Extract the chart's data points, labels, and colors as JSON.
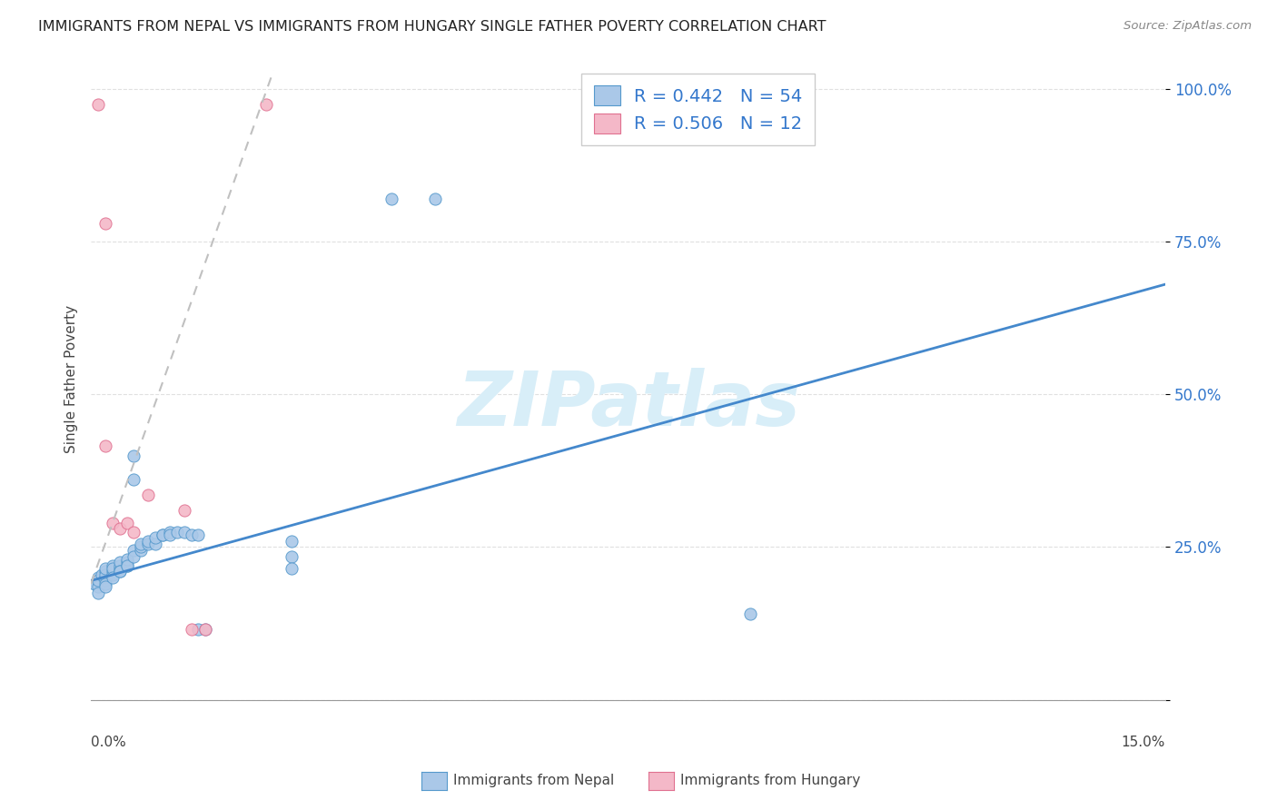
{
  "title": "IMMIGRANTS FROM NEPAL VS IMMIGRANTS FROM HUNGARY SINGLE FATHER POVERTY CORRELATION CHART",
  "source": "Source: ZipAtlas.com",
  "ylabel": "Single Father Poverty",
  "yticks": [
    0.0,
    0.25,
    0.5,
    0.75,
    1.0
  ],
  "ytick_labels": [
    "",
    "25.0%",
    "50.0%",
    "75.0%",
    "100.0%"
  ],
  "xlim": [
    0.0,
    0.15
  ],
  "ylim": [
    0.0,
    1.05
  ],
  "nepal_R": 0.442,
  "nepal_N": 54,
  "hungary_R": 0.506,
  "hungary_N": 12,
  "nepal_color": "#aac8e8",
  "nepal_edge_color": "#5599cc",
  "nepal_line_color": "#4488cc",
  "hungary_color": "#f4b8c8",
  "hungary_edge_color": "#e07090",
  "hungary_line_color": "#e06080",
  "hungary_reg_color": "#c0c0c0",
  "nepal_scatter": [
    [
      0.0005,
      0.19
    ],
    [
      0.001,
      0.2
    ],
    [
      0.001,
      0.185
    ],
    [
      0.001,
      0.175
    ],
    [
      0.001,
      0.195
    ],
    [
      0.0015,
      0.205
    ],
    [
      0.002,
      0.2
    ],
    [
      0.002,
      0.195
    ],
    [
      0.002,
      0.21
    ],
    [
      0.002,
      0.205
    ],
    [
      0.002,
      0.215
    ],
    [
      0.002,
      0.19
    ],
    [
      0.002,
      0.185
    ],
    [
      0.003,
      0.21
    ],
    [
      0.003,
      0.205
    ],
    [
      0.003,
      0.22
    ],
    [
      0.003,
      0.215
    ],
    [
      0.003,
      0.2
    ],
    [
      0.004,
      0.215
    ],
    [
      0.004,
      0.22
    ],
    [
      0.004,
      0.225
    ],
    [
      0.004,
      0.21
    ],
    [
      0.004,
      0.21
    ],
    [
      0.005,
      0.225
    ],
    [
      0.005,
      0.22
    ],
    [
      0.005,
      0.23
    ],
    [
      0.005,
      0.22
    ],
    [
      0.006,
      0.36
    ],
    [
      0.006,
      0.4
    ],
    [
      0.006,
      0.245
    ],
    [
      0.006,
      0.235
    ],
    [
      0.007,
      0.245
    ],
    [
      0.007,
      0.25
    ],
    [
      0.007,
      0.255
    ],
    [
      0.008,
      0.255
    ],
    [
      0.008,
      0.26
    ],
    [
      0.009,
      0.255
    ],
    [
      0.009,
      0.265
    ],
    [
      0.01,
      0.27
    ],
    [
      0.01,
      0.27
    ],
    [
      0.011,
      0.275
    ],
    [
      0.011,
      0.27
    ],
    [
      0.012,
      0.275
    ],
    [
      0.013,
      0.275
    ],
    [
      0.014,
      0.27
    ],
    [
      0.015,
      0.27
    ],
    [
      0.015,
      0.115
    ],
    [
      0.016,
      0.115
    ],
    [
      0.028,
      0.26
    ],
    [
      0.028,
      0.235
    ],
    [
      0.028,
      0.215
    ],
    [
      0.042,
      0.82
    ],
    [
      0.048,
      0.82
    ],
    [
      0.092,
      0.14
    ]
  ],
  "hungary_scatter": [
    [
      0.001,
      0.975
    ],
    [
      0.0245,
      0.975
    ],
    [
      0.002,
      0.78
    ],
    [
      0.002,
      0.415
    ],
    [
      0.003,
      0.29
    ],
    [
      0.004,
      0.28
    ],
    [
      0.005,
      0.29
    ],
    [
      0.006,
      0.275
    ],
    [
      0.008,
      0.335
    ],
    [
      0.013,
      0.31
    ],
    [
      0.014,
      0.115
    ],
    [
      0.016,
      0.115
    ]
  ],
  "watermark": "ZIPatlas",
  "watermark_color": "#d8eef8",
  "background_color": "#ffffff",
  "grid_color": "#e0e0e0"
}
